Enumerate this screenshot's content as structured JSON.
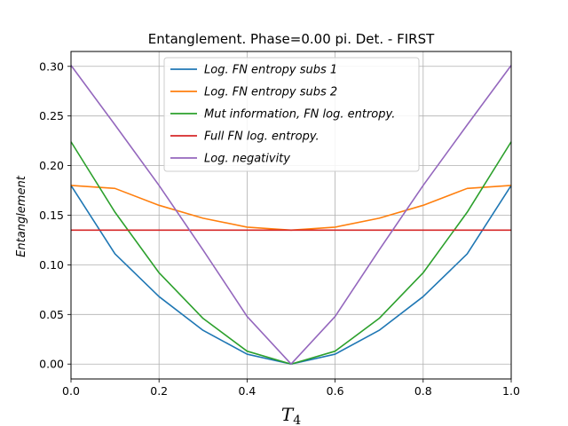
{
  "chart_data": {
    "type": "line",
    "title": "Entanglement. Phase=0.00 pi. Det. - FIRST",
    "xlabel_main": "T",
    "xlabel_sub": "4",
    "ylabel": "Entanglement",
    "xlim": [
      0.0,
      1.0
    ],
    "ylim": [
      -0.015,
      0.315
    ],
    "xticks": [
      0.0,
      0.2,
      0.4,
      0.6,
      0.8,
      1.0
    ],
    "xtick_labels": [
      "0.0",
      "0.2",
      "0.4",
      "0.6",
      "0.8",
      "1.0"
    ],
    "yticks": [
      0.0,
      0.05,
      0.1,
      0.15,
      0.2,
      0.25,
      0.3
    ],
    "ytick_labels": [
      "0.00",
      "0.05",
      "0.10",
      "0.15",
      "0.20",
      "0.25",
      "0.30"
    ],
    "grid": true,
    "legend_position": "top-center",
    "x": [
      0.0,
      0.1,
      0.2,
      0.3,
      0.4,
      0.5,
      0.6,
      0.7,
      0.8,
      0.9,
      1.0
    ],
    "series": [
      {
        "name": "Log. FN entropy subs 1",
        "color": "#1f77b4",
        "values": [
          0.18,
          0.111,
          0.068,
          0.034,
          0.01,
          0.0,
          0.01,
          0.034,
          0.068,
          0.111,
          0.18
        ]
      },
      {
        "name": "Log. FN entropy subs 2",
        "color": "#ff7f0e",
        "values": [
          0.18,
          0.177,
          0.16,
          0.147,
          0.138,
          0.135,
          0.138,
          0.147,
          0.16,
          0.177,
          0.18
        ]
      },
      {
        "name": "Mut information, FN log. entropy.",
        "color": "#2ca02c",
        "values": [
          0.224,
          0.153,
          0.092,
          0.046,
          0.013,
          0.0,
          0.013,
          0.046,
          0.092,
          0.153,
          0.224
        ]
      },
      {
        "name": "Full FN log. entropy.",
        "color": "#d62728",
        "values": [
          0.135,
          0.135,
          0.135,
          0.135,
          0.135,
          0.135,
          0.135,
          0.135,
          0.135,
          0.135,
          0.135
        ]
      },
      {
        "name": "Log. negativity",
        "color": "#9467bd",
        "values": [
          0.301,
          0.241,
          0.18,
          0.115,
          0.048,
          0.0,
          0.048,
          0.115,
          0.18,
          0.241,
          0.301
        ]
      }
    ]
  }
}
